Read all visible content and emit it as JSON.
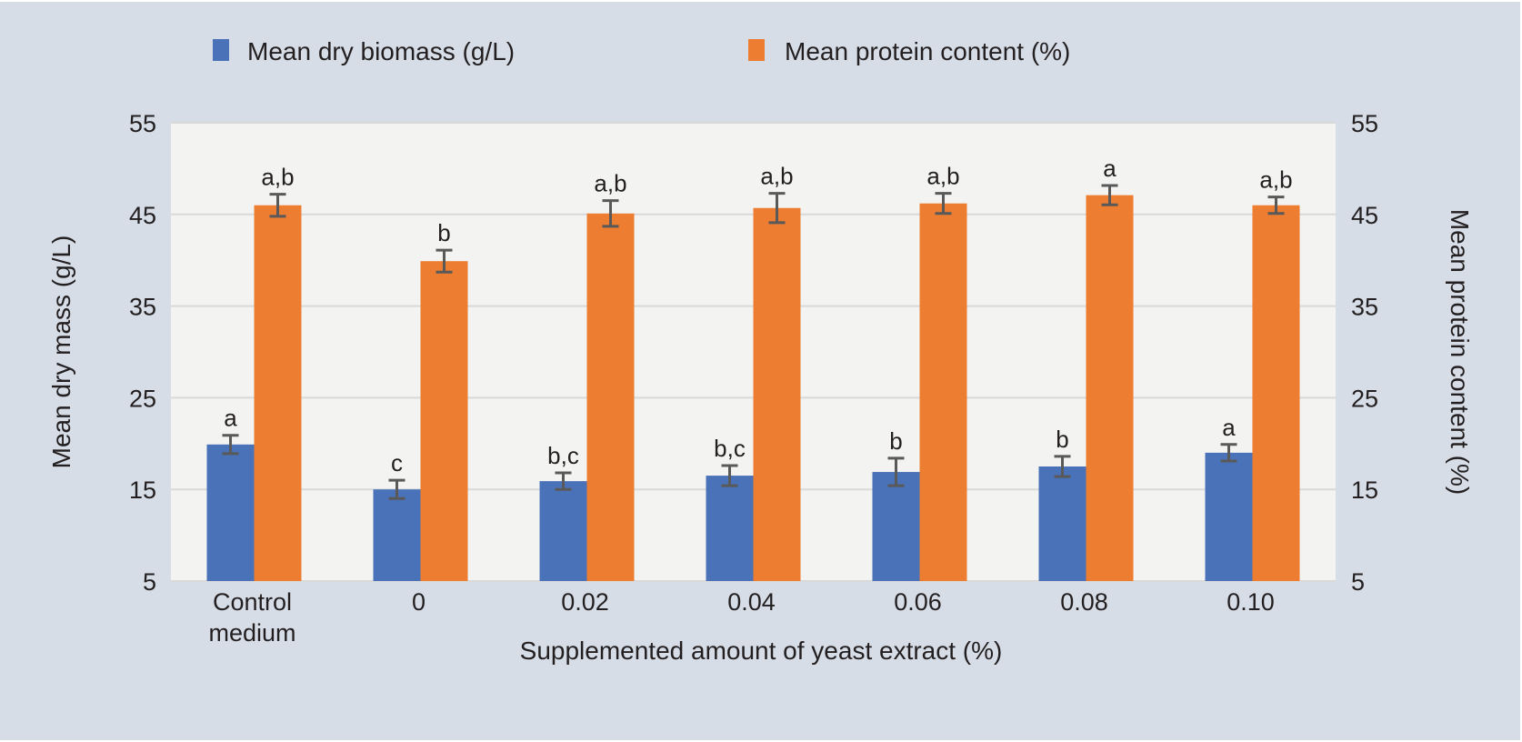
{
  "chart_data": {
    "type": "bar",
    "title": "",
    "xlabel": "Supplemented amount of yeast extract (%)",
    "ylabel": "Mean dry mass (g/L)",
    "y2label": "Mean protein content (%)",
    "ylim": [
      5,
      55
    ],
    "y2lim": [
      5,
      55
    ],
    "yticks": [
      "5",
      "15",
      "25",
      "35",
      "45",
      "55"
    ],
    "y2ticks": [
      "5",
      "15",
      "25",
      "35",
      "45",
      "55"
    ],
    "grid": true,
    "legend_position": "top",
    "categories": [
      [
        "Control",
        "medium"
      ],
      [
        "0"
      ],
      [
        "0.02"
      ],
      [
        "0.04"
      ],
      [
        "0.06"
      ],
      [
        "0.08"
      ],
      [
        "0.10"
      ]
    ],
    "series": [
      {
        "name": "Mean dry biomass (g/L)",
        "axis": "left",
        "color": "#4a72b8",
        "values": [
          19.9,
          15.0,
          15.9,
          16.5,
          16.9,
          17.5,
          19.0
        ],
        "errors": [
          1.0,
          1.0,
          0.9,
          1.1,
          1.5,
          1.1,
          0.9
        ],
        "significance": [
          "a",
          "c",
          "b,c",
          "b,c",
          "b",
          "b",
          "a"
        ]
      },
      {
        "name": "Mean protein content (%)",
        "axis": "right",
        "color": "#ed7d31",
        "values": [
          46.0,
          39.9,
          45.1,
          45.7,
          46.2,
          47.1,
          46.0
        ],
        "errors": [
          1.2,
          1.2,
          1.4,
          1.6,
          1.1,
          1.05,
          0.9
        ],
        "significance": [
          "a,b",
          "b",
          "a,b",
          "a,b",
          "a,b",
          "a",
          "a,b"
        ]
      }
    ]
  },
  "colors": {
    "panel_background": "#d6dde7",
    "plot_background": "#f3f3f2",
    "gridline": "#d9d9d9",
    "error_bar": "#595959"
  }
}
